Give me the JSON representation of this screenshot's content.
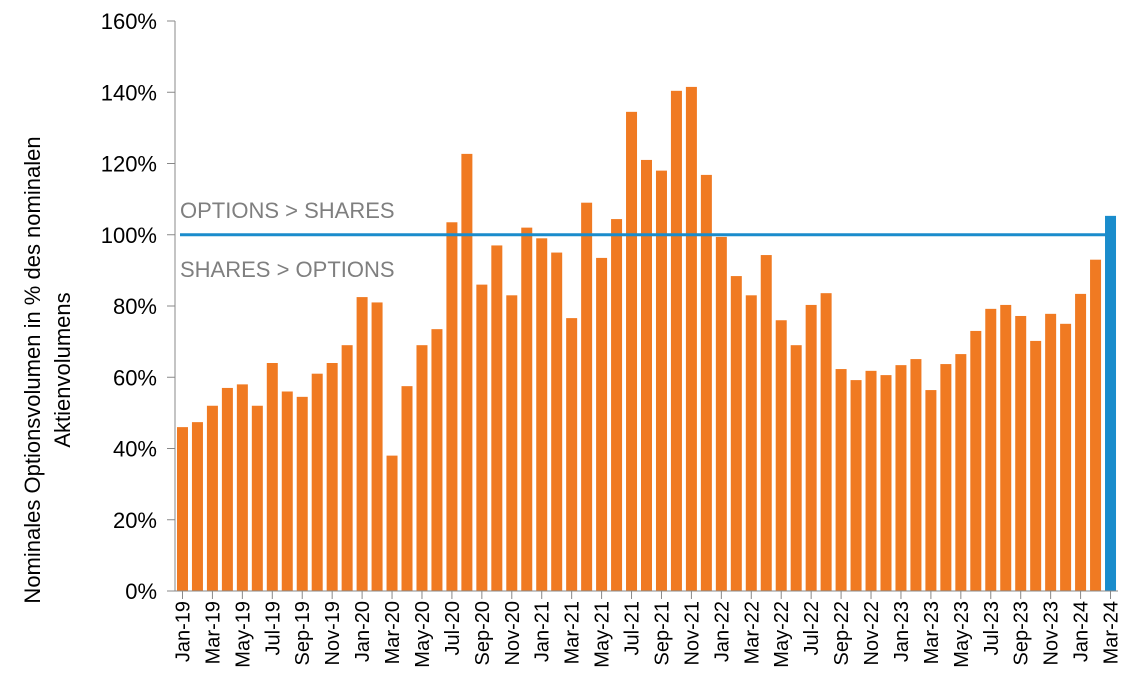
{
  "chart_data": {
    "type": "bar",
    "ylabel": [
      "Nominales Optionsvolumen in % des nominalen",
      "Aktienvolumens"
    ],
    "categories": [
      "Jan-19",
      null,
      "Mar-19",
      null,
      "May-19",
      null,
      "Jul-19",
      null,
      "Sep-19",
      null,
      "Nov-19",
      null,
      "Jan-20",
      null,
      "Mar-20",
      null,
      "May-20",
      null,
      "Jul-20",
      null,
      "Sep-20",
      null,
      "Nov-20",
      null,
      "Jan-21",
      null,
      "Mar-21",
      null,
      "May-21",
      null,
      "Jul-21",
      null,
      "Sep-21",
      null,
      "Nov-21",
      null,
      "Jan-22",
      null,
      "Mar-22",
      null,
      "May-22",
      null,
      "Jul-22",
      null,
      "Sep-22",
      null,
      "Nov-22",
      null,
      "Jan-23",
      null,
      "Mar-23",
      null,
      "May-23",
      null,
      "Jul-23",
      null,
      "Sep-23",
      null,
      "Nov-23",
      null,
      "Jan-24",
      null,
      "Mar-24"
    ],
    "values": [
      46,
      47.4,
      52,
      57,
      58,
      52,
      64,
      56,
      54.5,
      61,
      64,
      69,
      82.5,
      81,
      38,
      57.5,
      69,
      73.5,
      103.5,
      122.7,
      86,
      97,
      83,
      102,
      99,
      95,
      76.6,
      109,
      93.5,
      104.4,
      134.5,
      121,
      118,
      140.4,
      141.5,
      116.8,
      99.4,
      88.4,
      83,
      94.3,
      76,
      69,
      80.3,
      83.6,
      62.3,
      59.2,
      61.8,
      60.6,
      63.4,
      65.1,
      56.4,
      63.7,
      66.5,
      73,
      79.2,
      80.3,
      77.2,
      70.2,
      77.8,
      75,
      83.4,
      93,
      105.3
    ],
    "colors": [
      "#f07a22",
      "#f07a22",
      "#f07a22",
      "#f07a22",
      "#f07a22",
      "#f07a22",
      "#f07a22",
      "#f07a22",
      "#f07a22",
      "#f07a22",
      "#f07a22",
      "#f07a22",
      "#f07a22",
      "#f07a22",
      "#f07a22",
      "#f07a22",
      "#f07a22",
      "#f07a22",
      "#f07a22",
      "#f07a22",
      "#f07a22",
      "#f07a22",
      "#f07a22",
      "#f07a22",
      "#f07a22",
      "#f07a22",
      "#f07a22",
      "#f07a22",
      "#f07a22",
      "#f07a22",
      "#f07a22",
      "#f07a22",
      "#f07a22",
      "#f07a22",
      "#f07a22",
      "#f07a22",
      "#f07a22",
      "#f07a22",
      "#f07a22",
      "#f07a22",
      "#f07a22",
      "#f07a22",
      "#f07a22",
      "#f07a22",
      "#f07a22",
      "#f07a22",
      "#f07a22",
      "#f07a22",
      "#f07a22",
      "#f07a22",
      "#f07a22",
      "#f07a22",
      "#f07a22",
      "#f07a22",
      "#f07a22",
      "#f07a22",
      "#f07a22",
      "#f07a22",
      "#f07a22",
      "#f07a22",
      "#f07a22",
      "#f07a22",
      "#1a8ccc"
    ],
    "ylim": [
      0,
      160
    ],
    "yticks": [
      {
        "value": 0,
        "label": "0%"
      },
      {
        "value": 20,
        "label": "20%"
      },
      {
        "value": 40,
        "label": "40%"
      },
      {
        "value": 60,
        "label": "60%"
      },
      {
        "value": 80,
        "label": "80%"
      },
      {
        "value": 100,
        "label": "100%"
      },
      {
        "value": 120,
        "label": "120%"
      },
      {
        "value": 140,
        "label": "140%"
      },
      {
        "value": 160,
        "label": "160%"
      }
    ],
    "reference_line": {
      "value": 100,
      "color": "#1a8ccc"
    },
    "annotations": [
      "OPTIONS > SHARES",
      "SHARES > OPTIONS"
    ],
    "grid": false
  }
}
